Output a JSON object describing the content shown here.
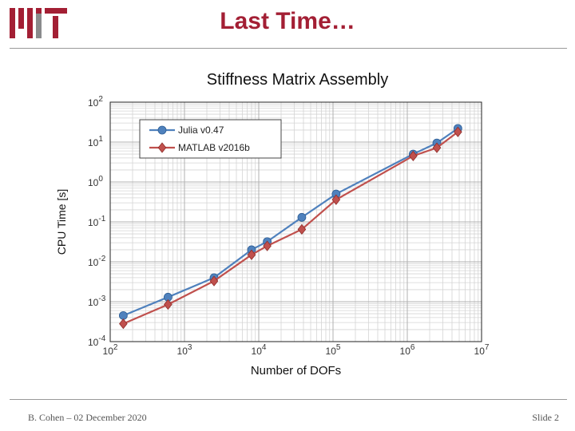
{
  "slide": {
    "title": "Last Time…",
    "footer_left": "B. Cohen – 02 December 2020",
    "footer_right": "Slide 2",
    "logo_text": "MIT"
  },
  "colors": {
    "title": "#a31f34",
    "julia": "#4f81bd",
    "matlab": "#c0504d",
    "logo": "#a31f34"
  },
  "chart_data": {
    "type": "line",
    "title": "Stiffness Matrix Assembly",
    "xlabel": "Number of DOFs",
    "ylabel": "CPU Time [s]",
    "xscale": "log",
    "yscale": "log",
    "xlim": [
      100,
      10000000
    ],
    "ylim": [
      0.0001,
      100
    ],
    "grid": true,
    "legend_position": "top-left",
    "x_ticks": [
      {
        "base": "10",
        "exp": "2"
      },
      {
        "base": "10",
        "exp": "3"
      },
      {
        "base": "10",
        "exp": "4"
      },
      {
        "base": "10",
        "exp": "5"
      },
      {
        "base": "10",
        "exp": "6"
      },
      {
        "base": "10",
        "exp": "7"
      }
    ],
    "y_ticks": [
      {
        "base": "10",
        "exp": "2"
      },
      {
        "base": "10",
        "exp": "1"
      },
      {
        "base": "10",
        "exp": "0"
      },
      {
        "base": "10",
        "exp": "-1"
      },
      {
        "base": "10",
        "exp": "-2"
      },
      {
        "base": "10",
        "exp": "-3"
      },
      {
        "base": "10",
        "exp": "-4"
      }
    ],
    "series": [
      {
        "name": "Julia v0.47",
        "marker": "circle",
        "points": [
          [
            150,
            0.00045
          ],
          [
            600,
            0.0013
          ],
          [
            2500,
            0.004
          ],
          [
            8000,
            0.02
          ],
          [
            13000,
            0.032
          ],
          [
            38000,
            0.13
          ],
          [
            110000,
            0.5
          ],
          [
            1200000,
            5.0
          ],
          [
            2500000,
            9.5
          ],
          [
            4800000,
            22
          ]
        ]
      },
      {
        "name": "MATLAB v2016b",
        "marker": "diamond",
        "points": [
          [
            150,
            0.00028
          ],
          [
            600,
            0.00085
          ],
          [
            2500,
            0.0033
          ],
          [
            8000,
            0.015
          ],
          [
            13000,
            0.025
          ],
          [
            38000,
            0.065
          ],
          [
            110000,
            0.36
          ],
          [
            1200000,
            4.5
          ],
          [
            2500000,
            7.2
          ],
          [
            4800000,
            18
          ]
        ]
      }
    ]
  }
}
